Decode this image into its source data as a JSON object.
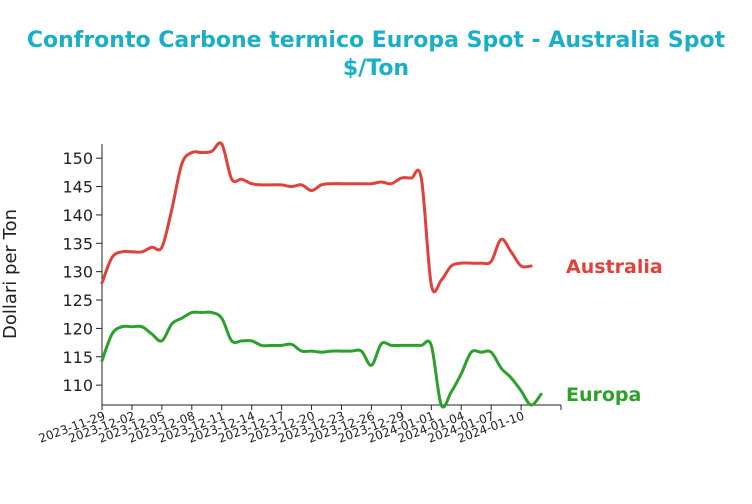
{
  "colors": {
    "title": "#1aafc9",
    "australia": "#e0413b",
    "europa": "#2ca02c",
    "axis": "#222222"
  },
  "chart_data": {
    "type": "line",
    "title": "Confronto Carbone termico Europa Spot - Australia Spot",
    "subtitle": "$/Ton",
    "xlabel": "",
    "ylabel": "Dollari per Ton",
    "ylim": [
      106.5,
      152.5
    ],
    "yticks": [
      110,
      115,
      120,
      125,
      130,
      135,
      140,
      145,
      150
    ],
    "xlim": [
      "2023-11-29",
      "2024-01-14"
    ],
    "xticks": [
      "2023-11-29",
      "2023-12-02",
      "2023-12-05",
      "2023-12-08",
      "2023-12-11",
      "2023-12-14",
      "2023-12-17",
      "2023-12-20",
      "2023-12-23",
      "2023-12-26",
      "2023-12-29",
      "2024-01-01",
      "2024-01-04",
      "2024-01-07",
      "2024-01-10"
    ],
    "grid": false,
    "legend": "inline-right",
    "series": [
      {
        "name": "Australia",
        "color": "#e0413b",
        "x": [
          "2023-11-29",
          "2023-11-30",
          "2023-12-01",
          "2023-12-02",
          "2023-12-03",
          "2023-12-04",
          "2023-12-05",
          "2023-12-06",
          "2023-12-07",
          "2023-12-08",
          "2023-12-09",
          "2023-12-10",
          "2023-12-11",
          "2023-12-12",
          "2023-12-13",
          "2023-12-14",
          "2023-12-15",
          "2023-12-16",
          "2023-12-17",
          "2023-12-18",
          "2023-12-19",
          "2023-12-20",
          "2023-12-21",
          "2023-12-22",
          "2023-12-23",
          "2023-12-24",
          "2023-12-25",
          "2023-12-26",
          "2023-12-27",
          "2023-12-28",
          "2023-12-29",
          "2023-12-30",
          "2023-12-31",
          "2024-01-01",
          "2024-01-02",
          "2024-01-03",
          "2024-01-04",
          "2024-01-05",
          "2024-01-06",
          "2024-01-07",
          "2024-01-08",
          "2024-01-09",
          "2024-01-10",
          "2024-01-11"
        ],
        "values": [
          128,
          132.5,
          133.5,
          133.5,
          133.5,
          134.3,
          134.3,
          141,
          149,
          151,
          151,
          151.2,
          152.5,
          146.3,
          146.3,
          145.5,
          145.3,
          145.3,
          145.3,
          145,
          145.3,
          144.3,
          145.3,
          145.5,
          145.5,
          145.5,
          145.5,
          145.5,
          145.8,
          145.5,
          146.5,
          146.5,
          146.5,
          127.7,
          128.5,
          131,
          131.5,
          131.5,
          131.5,
          131.8,
          135.7,
          133.5,
          131,
          131
        ]
      },
      {
        "name": "Europa",
        "color": "#2ca02c",
        "x": [
          "2023-11-29",
          "2023-11-30",
          "2023-12-01",
          "2023-12-02",
          "2023-12-03",
          "2023-12-04",
          "2023-12-05",
          "2023-12-06",
          "2023-12-07",
          "2023-12-08",
          "2023-12-09",
          "2023-12-10",
          "2023-12-11",
          "2023-12-12",
          "2023-12-13",
          "2023-12-14",
          "2023-12-15",
          "2023-12-16",
          "2023-12-17",
          "2023-12-18",
          "2023-12-19",
          "2023-12-20",
          "2023-12-21",
          "2023-12-22",
          "2023-12-23",
          "2023-12-24",
          "2023-12-25",
          "2023-12-26",
          "2023-12-27",
          "2023-12-28",
          "2023-12-29",
          "2023-12-30",
          "2023-12-31",
          "2024-01-01",
          "2024-01-02",
          "2024-01-03",
          "2024-01-04",
          "2024-01-05",
          "2024-01-06",
          "2024-01-07",
          "2024-01-08",
          "2024-01-09",
          "2024-01-10",
          "2024-01-11",
          "2024-01-12"
        ],
        "values": [
          114.3,
          119,
          120.3,
          120.3,
          120.3,
          119,
          117.8,
          120.8,
          121.8,
          122.8,
          122.8,
          122.8,
          121.8,
          117.8,
          117.8,
          117.8,
          117,
          117,
          117,
          117.2,
          116,
          116,
          115.8,
          116,
          116,
          116,
          116,
          113.5,
          117.3,
          117,
          117,
          117,
          117,
          117,
          106.5,
          108.8,
          112,
          115.8,
          115.8,
          115.8,
          113,
          111.3,
          109,
          106.5,
          108.4
        ]
      }
    ]
  }
}
